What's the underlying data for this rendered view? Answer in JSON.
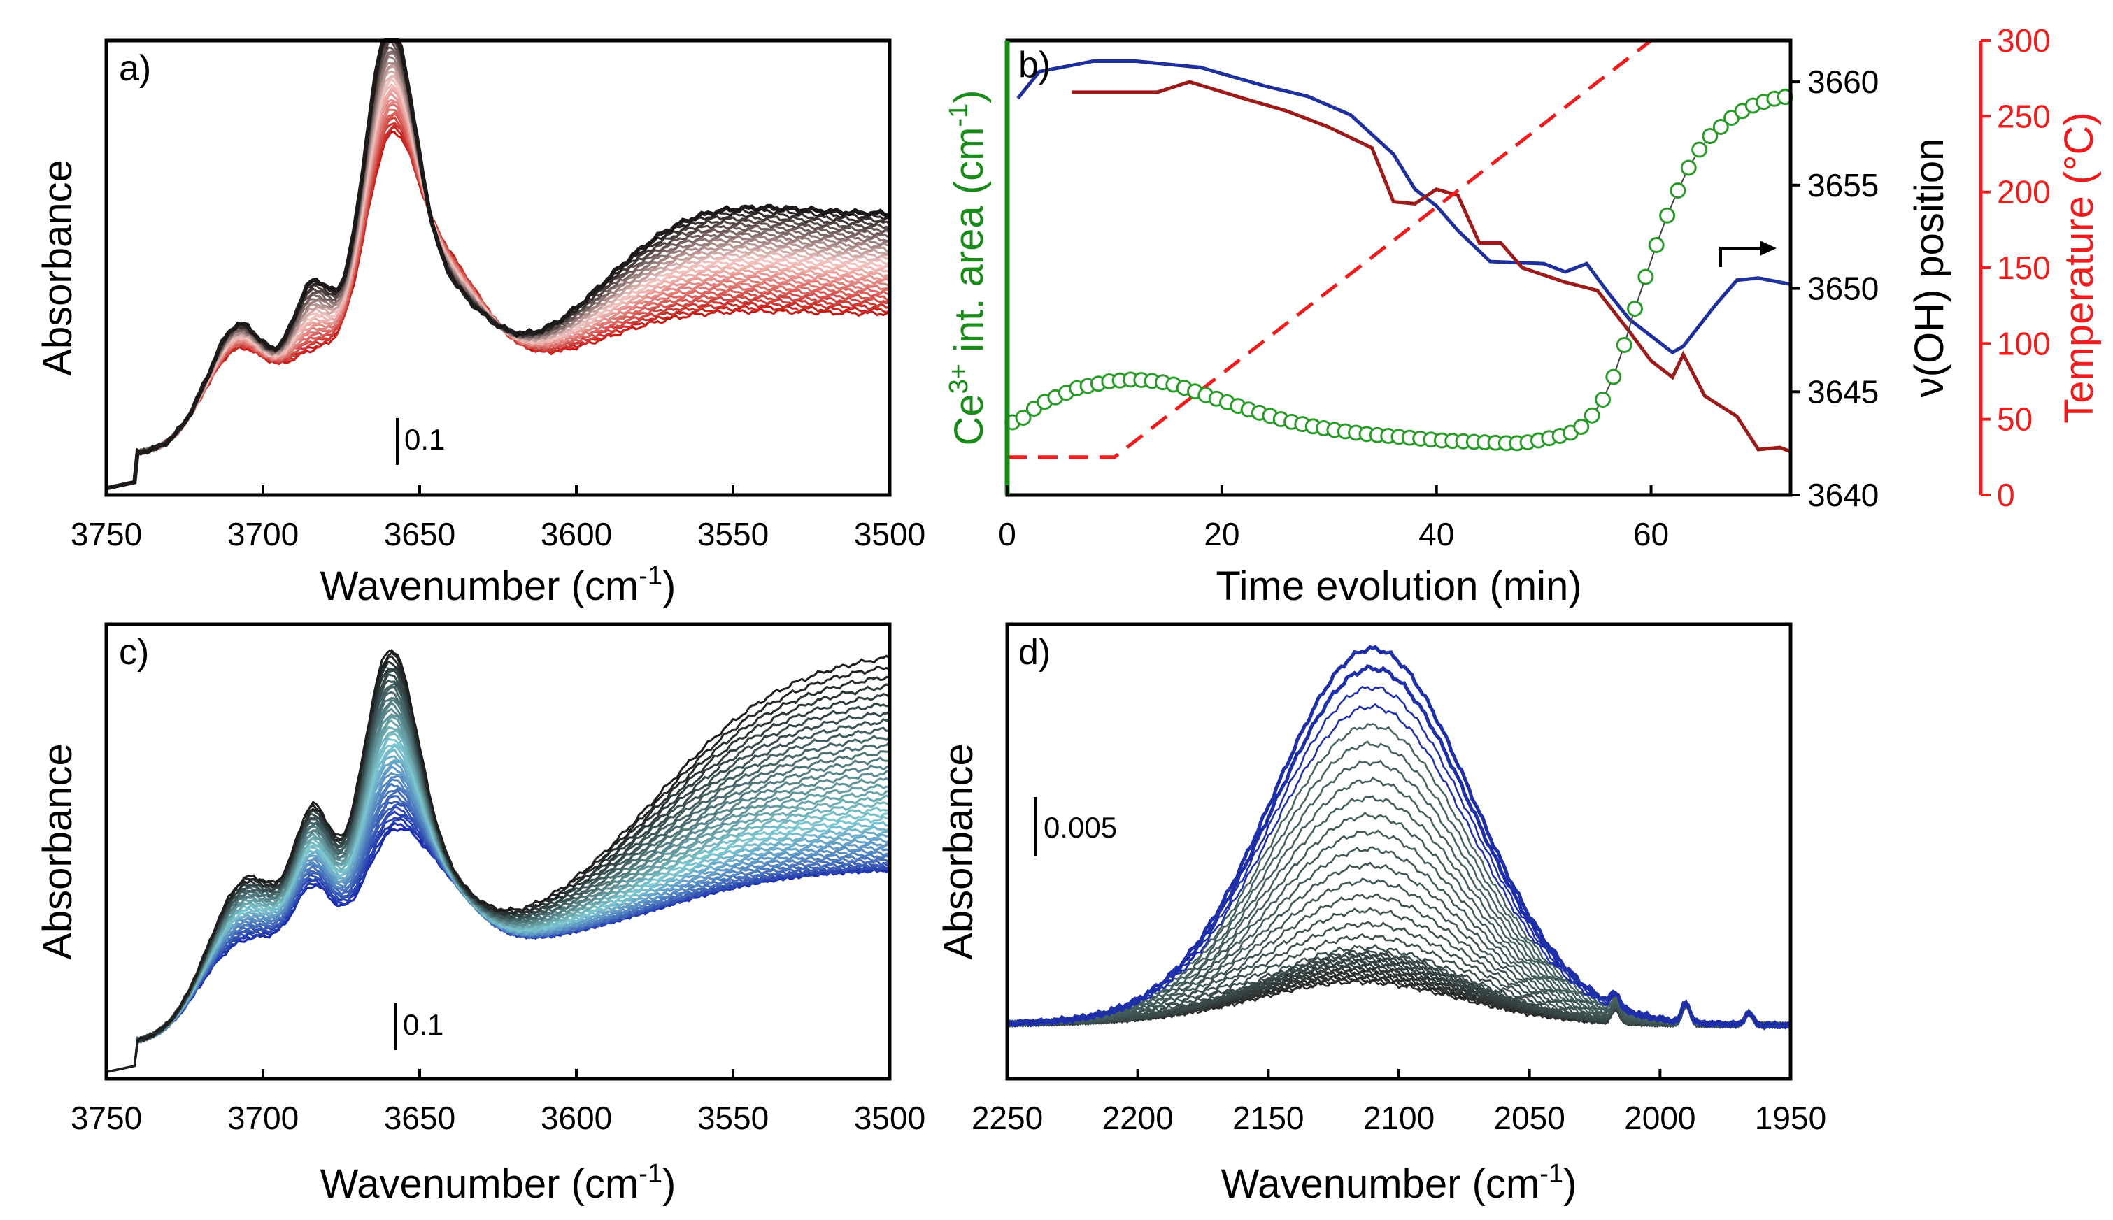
{
  "chart_data": [
    {
      "panel": "a)",
      "type": "line",
      "series_count": 32,
      "colors": [
        "#c41a14",
        "#f4c8c4",
        "#1e1a1a"
      ],
      "xlabel": "Wavenumber (cm",
      "xlabel_sup": "-1",
      "xlabel_end": ")",
      "ylabel": "Absorbance",
      "xlim": [
        3750,
        3500
      ],
      "ylim": [
        0,
        1.35
      ],
      "xticks": [
        "3750",
        "3700",
        "3650",
        "3600",
        "3550",
        "3500"
      ],
      "scalebar": "0.1",
      "peaks": [
        {
          "x": 3660,
          "ymin": 0.8,
          "ymax": 1.18,
          "w": 8
        },
        {
          "x": 3684,
          "ymin": 0.35,
          "ymax": 0.55,
          "w": 6
        },
        {
          "x": 3708,
          "ymin": 0.38,
          "ymax": 0.45,
          "w": 7
        }
      ]
    },
    {
      "panel": "b)",
      "type": "line",
      "xlabel": "Time evolution (min)",
      "xlim": [
        0,
        73
      ],
      "xticks": [
        "0",
        "20",
        "40",
        "60"
      ],
      "left_axis": {
        "label_a": "Ce",
        "label_sup": "3+",
        "label_b": " int. area (cm",
        "label_sup2": "-1",
        "label_c": ")",
        "color": "#1a8a1a"
      },
      "right_axis1": {
        "label": "ν(OH) position",
        "ylim": [
          3640,
          3662
        ],
        "ticks": [
          "3640",
          "3645",
          "3650",
          "3655",
          "3660"
        ]
      },
      "right_axis2": {
        "label": "Temperature (°C)",
        "color": "#ee1c1c",
        "ylim": [
          0,
          300
        ],
        "ticks": [
          "0",
          "50",
          "100",
          "150",
          "200",
          "250",
          "300"
        ]
      },
      "series": [
        {
          "name": "blue OH position",
          "color": "#1f2f9c",
          "axis": "right1",
          "x": [
            1,
            3,
            5,
            8,
            12,
            18,
            24,
            28,
            32,
            36,
            38,
            40,
            42,
            45,
            50,
            52,
            54,
            56,
            58,
            60,
            62,
            63,
            66,
            68,
            70,
            73
          ],
          "y": [
            3659.2,
            3660.5,
            3660.7,
            3661,
            3661,
            3660.7,
            3659.8,
            3659.3,
            3658.4,
            3656.5,
            3654.8,
            3654,
            3652.8,
            3651.3,
            3651.2,
            3650.8,
            3651.2,
            3649.8,
            3648.5,
            3647.7,
            3646.9,
            3647.2,
            3649.2,
            3650.4,
            3650.5,
            3650.2
          ]
        },
        {
          "name": "red OH position",
          "color": "#9c1c1c",
          "axis": "right1",
          "x": [
            6,
            14,
            17,
            22,
            26,
            30,
            34,
            36,
            38,
            40,
            42,
            44,
            46,
            48,
            52,
            55,
            58,
            60,
            62,
            63,
            65,
            68,
            70,
            72,
            73
          ],
          "y": [
            3659.5,
            3659.5,
            3660,
            3659.2,
            3658.6,
            3657.8,
            3656.8,
            3654.2,
            3654.1,
            3654.8,
            3654.5,
            3652.2,
            3652.2,
            3651,
            3650.3,
            3649.9,
            3647.9,
            3646.5,
            3645.7,
            3646.8,
            3644.8,
            3643.8,
            3642.2,
            3642.3,
            3642.1
          ]
        },
        {
          "name": "temperature",
          "color": "#ee1c1c",
          "axis": "right2",
          "dashed": true,
          "x": [
            0,
            10,
            60,
            73
          ],
          "y": [
            25,
            25,
            300,
            300
          ]
        },
        {
          "name": "Ce3+ area",
          "color": "#2a9a2a",
          "axis": "left",
          "markers": "open-circle",
          "x": [
            0.5,
            1.5,
            2.5,
            3.5,
            4.5,
            5.5,
            6.5,
            7.5,
            8.5,
            9.5,
            10.5,
            11.5,
            12.5,
            13.5,
            14.5,
            15.5,
            16.5,
            17.5,
            18.5,
            19.5,
            20.5,
            21.5,
            22.5,
            23.5,
            24.5,
            25.5,
            26.5,
            27.5,
            28.5,
            29.5,
            30.5,
            31.5,
            32.5,
            33.5,
            34.5,
            35.5,
            36.5,
            37.5,
            38.5,
            39.5,
            40.5,
            41.5,
            42.5,
            43.5,
            44.5,
            45.5,
            46.5,
            47.5,
            48.5,
            49.5,
            50.5,
            51.5,
            52.5,
            53.5,
            54.5,
            55.5,
            56.5,
            57.5,
            58.5,
            59.5,
            60.5,
            61.5,
            62.5,
            63.5,
            64.5,
            65.5,
            66.5,
            67.5,
            68.5,
            69.5,
            70.5,
            71.5,
            72.5
          ],
          "y": [
            0.16,
            0.17,
            0.19,
            0.205,
            0.215,
            0.225,
            0.235,
            0.24,
            0.245,
            0.25,
            0.252,
            0.254,
            0.253,
            0.251,
            0.248,
            0.243,
            0.236,
            0.228,
            0.22,
            0.212,
            0.204,
            0.196,
            0.188,
            0.181,
            0.174,
            0.167,
            0.161,
            0.156,
            0.151,
            0.147,
            0.143,
            0.14,
            0.137,
            0.134,
            0.132,
            0.13,
            0.128,
            0.126,
            0.124,
            0.122,
            0.12,
            0.119,
            0.118,
            0.117,
            0.116,
            0.115,
            0.114,
            0.114,
            0.116,
            0.12,
            0.125,
            0.13,
            0.137,
            0.15,
            0.175,
            0.21,
            0.26,
            0.33,
            0.41,
            0.48,
            0.55,
            0.615,
            0.67,
            0.72,
            0.76,
            0.79,
            0.81,
            0.83,
            0.845,
            0.857,
            0.865,
            0.872,
            0.876
          ]
        }
      ]
    },
    {
      "panel": "c)",
      "type": "line",
      "series_count": 44,
      "colors": [
        "#1a2aaa",
        "#7ec8d0",
        "#1e1e1e"
      ],
      "xlabel": "Wavenumber (cm",
      "xlabel_sup": "-1",
      "xlabel_end": ")",
      "ylabel": "Absorbance",
      "xlim": [
        3750,
        3500
      ],
      "ylim": [
        0,
        1.35
      ],
      "xticks": [
        "3750",
        "3700",
        "3650",
        "3600",
        "3550",
        "3500"
      ],
      "scalebar": "0.1"
    },
    {
      "panel": "d)",
      "type": "line",
      "series_count": 38,
      "colors": [
        "#2a2a2a",
        "#4a6a6a",
        "#1f2fa8"
      ],
      "xlabel": "Wavenumber (cm",
      "xlabel_sup": "-1",
      "xlabel_end": ")",
      "ylabel": "Absorbance",
      "xlim": [
        2250,
        1950
      ],
      "ylim": [
        0,
        0.03
      ],
      "xticks": [
        "2250",
        "2200",
        "2150",
        "2100",
        "2050",
        "2000",
        "1950"
      ],
      "scalebar": "0.005",
      "band_center": 2115,
      "band_max": 0.0245
    }
  ]
}
